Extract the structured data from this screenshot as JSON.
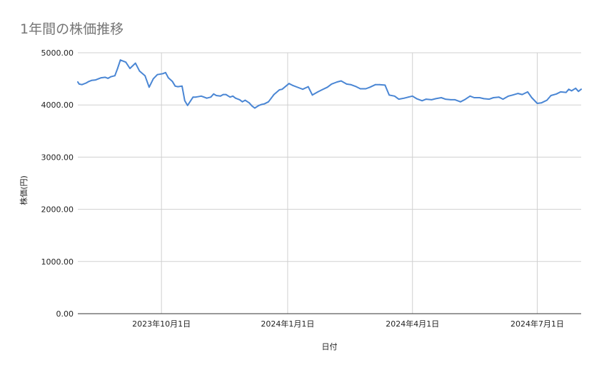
{
  "chart_data": {
    "type": "line",
    "title": "1年間の株価推移",
    "xlabel": "日付",
    "ylabel": "株価(円)",
    "ylim": [
      0,
      5000
    ],
    "yticks": [
      {
        "value": 0,
        "label": "0.00"
      },
      {
        "value": 1000,
        "label": "1000.00"
      },
      {
        "value": 2000,
        "label": "2000.00"
      },
      {
        "value": 3000,
        "label": "3000.00"
      },
      {
        "value": 4000,
        "label": "4000.00"
      },
      {
        "value": 5000,
        "label": "5000.00"
      }
    ],
    "xlim": [
      "2023-08-01",
      "2024-08-02"
    ],
    "xticks": [
      {
        "value": "2023-10-01",
        "label": "2023年10月1日"
      },
      {
        "value": "2024-01-01",
        "label": "2024年1月1日"
      },
      {
        "value": "2024-04-01",
        "label": "2024年4月1日"
      },
      {
        "value": "2024-07-01",
        "label": "2024年7月1日"
      }
    ],
    "grid": true,
    "line_color": "#4a86d4",
    "series": [
      {
        "x": [
          "2023-08-01",
          "2023-08-02",
          "2023-08-04",
          "2023-08-07",
          "2023-08-09",
          "2023-08-11",
          "2023-08-14",
          "2023-08-16",
          "2023-08-18",
          "2023-08-21",
          "2023-08-23",
          "2023-08-25",
          "2023-08-28",
          "2023-08-30",
          "2023-09-01",
          "2023-09-05",
          "2023-09-08",
          "2023-09-12",
          "2023-09-15",
          "2023-09-19",
          "2023-09-22",
          "2023-09-25",
          "2023-09-28",
          "2023-10-02",
          "2023-10-04",
          "2023-10-06",
          "2023-10-09",
          "2023-10-11",
          "2023-10-13",
          "2023-10-16",
          "2023-10-18",
          "2023-10-20",
          "2023-10-24",
          "2023-10-26",
          "2023-10-30",
          "2023-11-01",
          "2023-11-03",
          "2023-11-06",
          "2023-11-08",
          "2023-11-10",
          "2023-11-13",
          "2023-11-15",
          "2023-11-17",
          "2023-11-20",
          "2023-11-22",
          "2023-11-24",
          "2023-11-27",
          "2023-11-29",
          "2023-12-01",
          "2023-12-04",
          "2023-12-06",
          "2023-12-08",
          "2023-12-11",
          "2023-12-13",
          "2023-12-15",
          "2023-12-18",
          "2023-12-20",
          "2023-12-22",
          "2023-12-26",
          "2023-12-28",
          "2024-01-02",
          "2024-01-05",
          "2024-01-09",
          "2024-01-12",
          "2024-01-16",
          "2024-01-19",
          "2024-01-23",
          "2024-01-26",
          "2024-01-30",
          "2024-02-02",
          "2024-02-06",
          "2024-02-09",
          "2024-02-13",
          "2024-02-16",
          "2024-02-20",
          "2024-02-23",
          "2024-02-27",
          "2024-03-01",
          "2024-03-05",
          "2024-03-08",
          "2024-03-12",
          "2024-03-15",
          "2024-03-19",
          "2024-03-22",
          "2024-03-26",
          "2024-03-29",
          "2024-04-01",
          "2024-04-04",
          "2024-04-08",
          "2024-04-11",
          "2024-04-15",
          "2024-04-18",
          "2024-04-22",
          "2024-04-25",
          "2024-04-29",
          "2024-05-02",
          "2024-05-06",
          "2024-05-09",
          "2024-05-13",
          "2024-05-16",
          "2024-05-20",
          "2024-05-23",
          "2024-05-27",
          "2024-05-30",
          "2024-06-03",
          "2024-06-06",
          "2024-06-10",
          "2024-06-13",
          "2024-06-17",
          "2024-06-20",
          "2024-06-24",
          "2024-06-27",
          "2024-07-01",
          "2024-07-04",
          "2024-07-08",
          "2024-07-11",
          "2024-07-15",
          "2024-07-18",
          "2024-07-22",
          "2024-07-24",
          "2024-07-26",
          "2024-07-29",
          "2024-07-31",
          "2024-08-02"
        ],
        "values": [
          4440,
          4400,
          4390,
          4420,
          4450,
          4470,
          4480,
          4500,
          4520,
          4530,
          4510,
          4540,
          4560,
          4700,
          4860,
          4820,
          4700,
          4800,
          4650,
          4560,
          4340,
          4500,
          4580,
          4600,
          4620,
          4520,
          4450,
          4360,
          4350,
          4360,
          4080,
          3990,
          4150,
          4150,
          4170,
          4150,
          4130,
          4150,
          4210,
          4180,
          4170,
          4200,
          4200,
          4150,
          4170,
          4130,
          4100,
          4060,
          4090,
          4040,
          3980,
          3940,
          3990,
          4010,
          4020,
          4060,
          4130,
          4200,
          4290,
          4300,
          4410,
          4370,
          4330,
          4300,
          4350,
          4190,
          4250,
          4290,
          4340,
          4400,
          4440,
          4460,
          4400,
          4390,
          4350,
          4310,
          4310,
          4340,
          4390,
          4390,
          4380,
          4190,
          4170,
          4110,
          4130,
          4150,
          4170,
          4120,
          4080,
          4110,
          4100,
          4120,
          4140,
          4110,
          4100,
          4100,
          4060,
          4100,
          4170,
          4140,
          4140,
          4120,
          4110,
          4140,
          4150,
          4110,
          4170,
          4190,
          4220,
          4200,
          4250,
          4140,
          4030,
          4040,
          4090,
          4180,
          4210,
          4250,
          4240,
          4300,
          4270,
          4320,
          4260,
          4300
        ]
      }
    ]
  }
}
